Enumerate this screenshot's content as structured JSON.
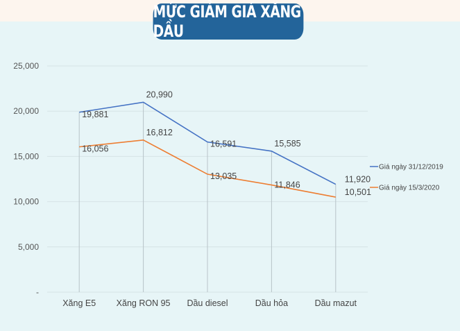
{
  "header": {
    "title": "MỨC GIẢM GIÁ XĂNG DẦU"
  },
  "colors": {
    "background": "#e7f5f7",
    "top_strip": "#fdf5ee",
    "title_bg": "#23649a",
    "series_1": "#4472c4",
    "series_2": "#ed7d31",
    "gridline": "#d6e3e6",
    "drop_line": "#b8c4c8"
  },
  "chart_data": {
    "type": "line",
    "title": "MỨC GIẢM GIÁ XĂNG DẦU",
    "xlabel": "",
    "ylabel": "",
    "categories": [
      "Xăng E5",
      "Xăng RON 95",
      "Dầu diesel",
      "Dầu hỏa",
      "Dầu mazut"
    ],
    "series": [
      {
        "name": "Giá ngày 31/12/2019",
        "values": [
          19881,
          20990,
          16591,
          15585,
          11920
        ],
        "labels": [
          "19,881",
          "20,990",
          "16,591",
          "15,585",
          "11,920"
        ]
      },
      {
        "name": "Giá ngày 15/3/2020",
        "values": [
          16056,
          16812,
          13035,
          11846,
          10501
        ],
        "labels": [
          "16,056",
          "16,812",
          "13,035",
          "11,846",
          "10,501"
        ]
      }
    ],
    "ylim": [
      0,
      25000
    ],
    "yticks": [
      0,
      5000,
      10000,
      15000,
      20000,
      25000
    ],
    "ytick_labels": [
      "-",
      "5,000",
      "10,000",
      "15,000",
      "20,000",
      "25,000"
    ],
    "grid": true,
    "drop_lines": true,
    "legend_position": "right"
  }
}
